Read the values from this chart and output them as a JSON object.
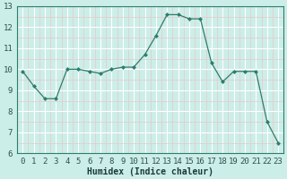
{
  "x": [
    0,
    1,
    2,
    3,
    4,
    5,
    6,
    7,
    8,
    9,
    10,
    11,
    12,
    13,
    14,
    15,
    16,
    17,
    18,
    19,
    20,
    21,
    22,
    23
  ],
  "y": [
    9.9,
    9.2,
    8.6,
    8.6,
    10.0,
    10.0,
    9.9,
    9.8,
    10.0,
    10.1,
    10.1,
    10.7,
    11.6,
    12.6,
    12.6,
    12.4,
    12.4,
    10.3,
    9.4,
    9.9,
    9.9,
    9.9,
    7.5,
    6.5
  ],
  "xlabel": "Humidex (Indice chaleur)",
  "ylim": [
    6,
    13
  ],
  "xlim": [
    -0.5,
    23.5
  ],
  "yticks": [
    6,
    7,
    8,
    9,
    10,
    11,
    12,
    13
  ],
  "xticks": [
    0,
    1,
    2,
    3,
    4,
    5,
    6,
    7,
    8,
    9,
    10,
    11,
    12,
    13,
    14,
    15,
    16,
    17,
    18,
    19,
    20,
    21,
    22,
    23
  ],
  "line_color": "#2d7d6e",
  "marker_color": "#2d7d6e",
  "bg_color": "#cceee8",
  "major_grid_color": "#ffffff",
  "minor_grid_color": "#e8c8c8",
  "tick_label_color": "#2d5050",
  "xlabel_color": "#1a3a3a",
  "xlabel_fontsize": 7,
  "tick_fontsize": 6.5
}
